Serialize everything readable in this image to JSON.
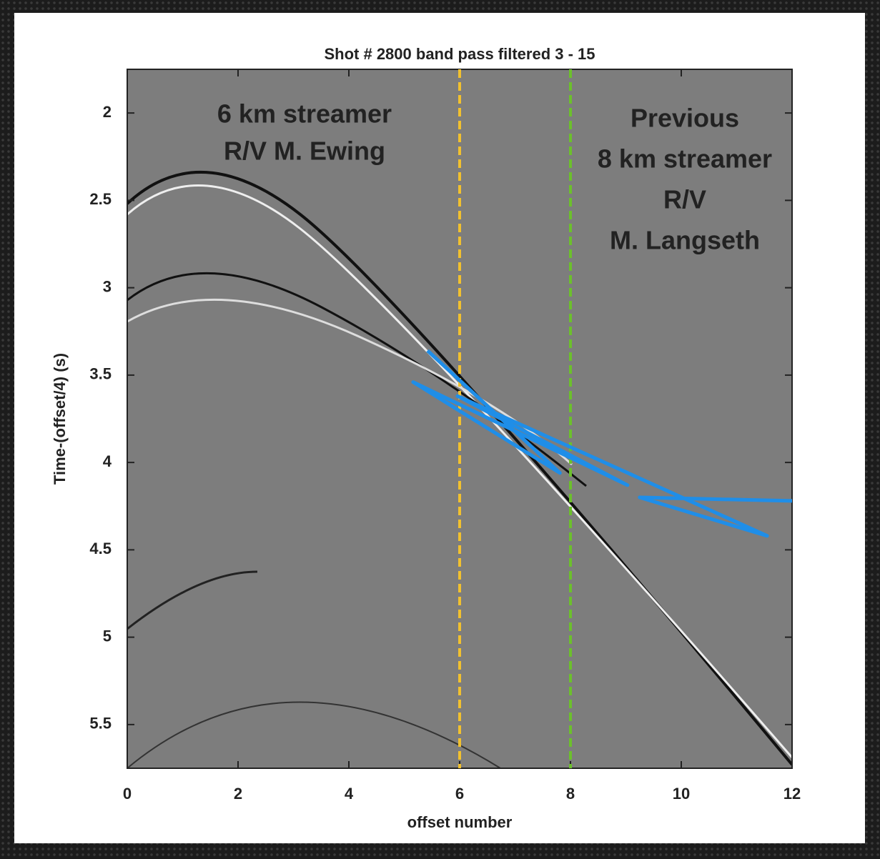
{
  "chart_data": {
    "type": "line",
    "title": "Shot # 2800 band pass filtered 3 - 15",
    "x_label": "offset number",
    "y_label": "Time-(offset/4) (s)",
    "xlim": [
      0,
      12
    ],
    "xticks": [
      0,
      2,
      4,
      6,
      8,
      10,
      12
    ],
    "ylim": [
      1.75,
      5.75
    ],
    "yticks": [
      2,
      2.5,
      3,
      3.5,
      4,
      4.5,
      5,
      5.5
    ],
    "y_reversed": true,
    "vlines": [
      {
        "value": 6,
        "color": "#f2c12e"
      },
      {
        "value": 8,
        "color": "#6cc02c"
      }
    ],
    "annotations": [
      {
        "lines": [
          "6 km streamer",
          "R/V M. Ewing"
        ],
        "color": "#f2c12e"
      },
      {
        "lines": [
          "Previous",
          "8 km streamer",
          "R/V",
          "M. Langseth"
        ],
        "color": "#6cc02c"
      }
    ],
    "series": [
      {
        "color": "#1f8ee8",
        "x": [
          5.42,
          7.81,
          5.16,
          9.03,
          5.96,
          11.55,
          9.25,
          12
        ],
        "values": [
          3.36,
          4.06,
          3.54,
          4.13,
          3.62,
          4.42,
          4.2,
          4.22
        ]
      }
    ]
  }
}
